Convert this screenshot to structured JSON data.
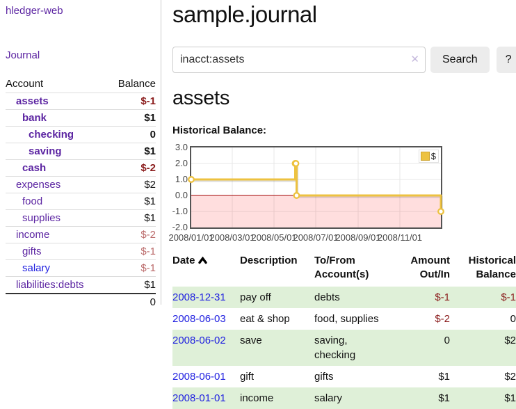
{
  "colors": {
    "purple_link": "#5c25a2",
    "blue_link": "#1f1fe0",
    "negative_strong": "#8b1d1d",
    "negative_soft": "#bb6b6b",
    "row_green": "#dff0d8",
    "series_gold": "#edc240",
    "zero_line_red": "#a00000"
  },
  "sidebar": {
    "app_title": "hledger-web",
    "journal_link": "Journal",
    "accounts": {
      "headers": {
        "account": "Account",
        "balance": "Balance"
      },
      "rows": [
        {
          "account": "assets",
          "level": 1,
          "balance": "$-1",
          "emph": true
        },
        {
          "account": "bank",
          "level": 2,
          "balance": "$1",
          "emph": true
        },
        {
          "account": "checking",
          "level": 3,
          "balance": "0",
          "emph": true
        },
        {
          "account": "saving",
          "level": 3,
          "balance": "$1",
          "emph": true
        },
        {
          "account": "cash",
          "level": 2,
          "balance": "$-2",
          "emph": true
        },
        {
          "account": "expenses",
          "level": 1,
          "balance": "$2",
          "emph": false
        },
        {
          "account": "food",
          "level": 2,
          "balance": "$1",
          "emph": false
        },
        {
          "account": "supplies",
          "level": 2,
          "balance": "$1",
          "emph": false
        },
        {
          "account": "income",
          "level": 1,
          "balance": "$-2",
          "emph": false
        },
        {
          "account": "gifts",
          "level": 2,
          "balance": "$-1",
          "emph": false
        },
        {
          "account": "salary",
          "level": 2,
          "balance": "$-1",
          "emph": false,
          "link_style": "blue"
        },
        {
          "account": "liabilities:debts",
          "level": 1,
          "balance": "$1",
          "emph": false
        }
      ],
      "total": "0"
    }
  },
  "main": {
    "title": "sample.journal",
    "search": {
      "value": "inacct:assets",
      "clear_icon": "✕",
      "search_label": "Search",
      "help_label": "?"
    },
    "account_heading": "assets"
  },
  "chart_data": {
    "type": "line",
    "step": true,
    "title": "Historical Balance:",
    "series": [
      {
        "name": "$",
        "color": "#edc240",
        "points": [
          [
            "2008-01-01",
            1
          ],
          [
            "2008-06-01",
            2
          ],
          [
            "2008-06-02",
            2
          ],
          [
            "2008-06-03",
            0
          ],
          [
            "2008-12-31",
            -1
          ]
        ]
      }
    ],
    "xlim": [
      "2008-01-01",
      "2008-12-31"
    ],
    "ylim": [
      -2,
      3
    ],
    "yticks": [
      {
        "label": "3.0",
        "value": 3
      },
      {
        "label": "2.0",
        "value": 2
      },
      {
        "label": "1.0",
        "value": 1
      },
      {
        "label": "0.0",
        "value": 0
      },
      {
        "label": "-1.0",
        "value": -1
      },
      {
        "label": "-2.0",
        "value": -2
      }
    ],
    "xticks": [
      {
        "label": "2008/01/01",
        "date": "2008-01-01"
      },
      {
        "label": "2008/03/01",
        "date": "2008-03-01"
      },
      {
        "label": "2008/05/01",
        "date": "2008-05-01"
      },
      {
        "label": "2008/07/01",
        "date": "2008-07-01"
      },
      {
        "label": "2008/09/01",
        "date": "2008-09-01"
      },
      {
        "label": "2008/11/01",
        "date": "2008-11-01"
      }
    ],
    "grid": true,
    "legend_position": "top-right",
    "negative_region": true
  },
  "transactions": {
    "headers": [
      "Date",
      "Description",
      "To/From Account(s)",
      "Amount Out/In",
      "Historical Balance"
    ],
    "sort_column": "Date",
    "sort_direction": "ascending",
    "rows": [
      {
        "date": "2008-12-31",
        "description": "pay off",
        "accounts": "debts",
        "amount": "$-1",
        "balance": "$-1"
      },
      {
        "date": "2008-06-03",
        "description": "eat & shop",
        "accounts": "food, supplies",
        "amount": "$-2",
        "balance": "0"
      },
      {
        "date": "2008-06-02",
        "description": "save",
        "accounts": "saving, checking",
        "amount": "0",
        "balance": "$2"
      },
      {
        "date": "2008-06-01",
        "description": "gift",
        "accounts": "gifts",
        "amount": "$1",
        "balance": "$2"
      },
      {
        "date": "2008-01-01",
        "description": "income",
        "accounts": "salary",
        "amount": "$1",
        "balance": "$1"
      }
    ]
  }
}
